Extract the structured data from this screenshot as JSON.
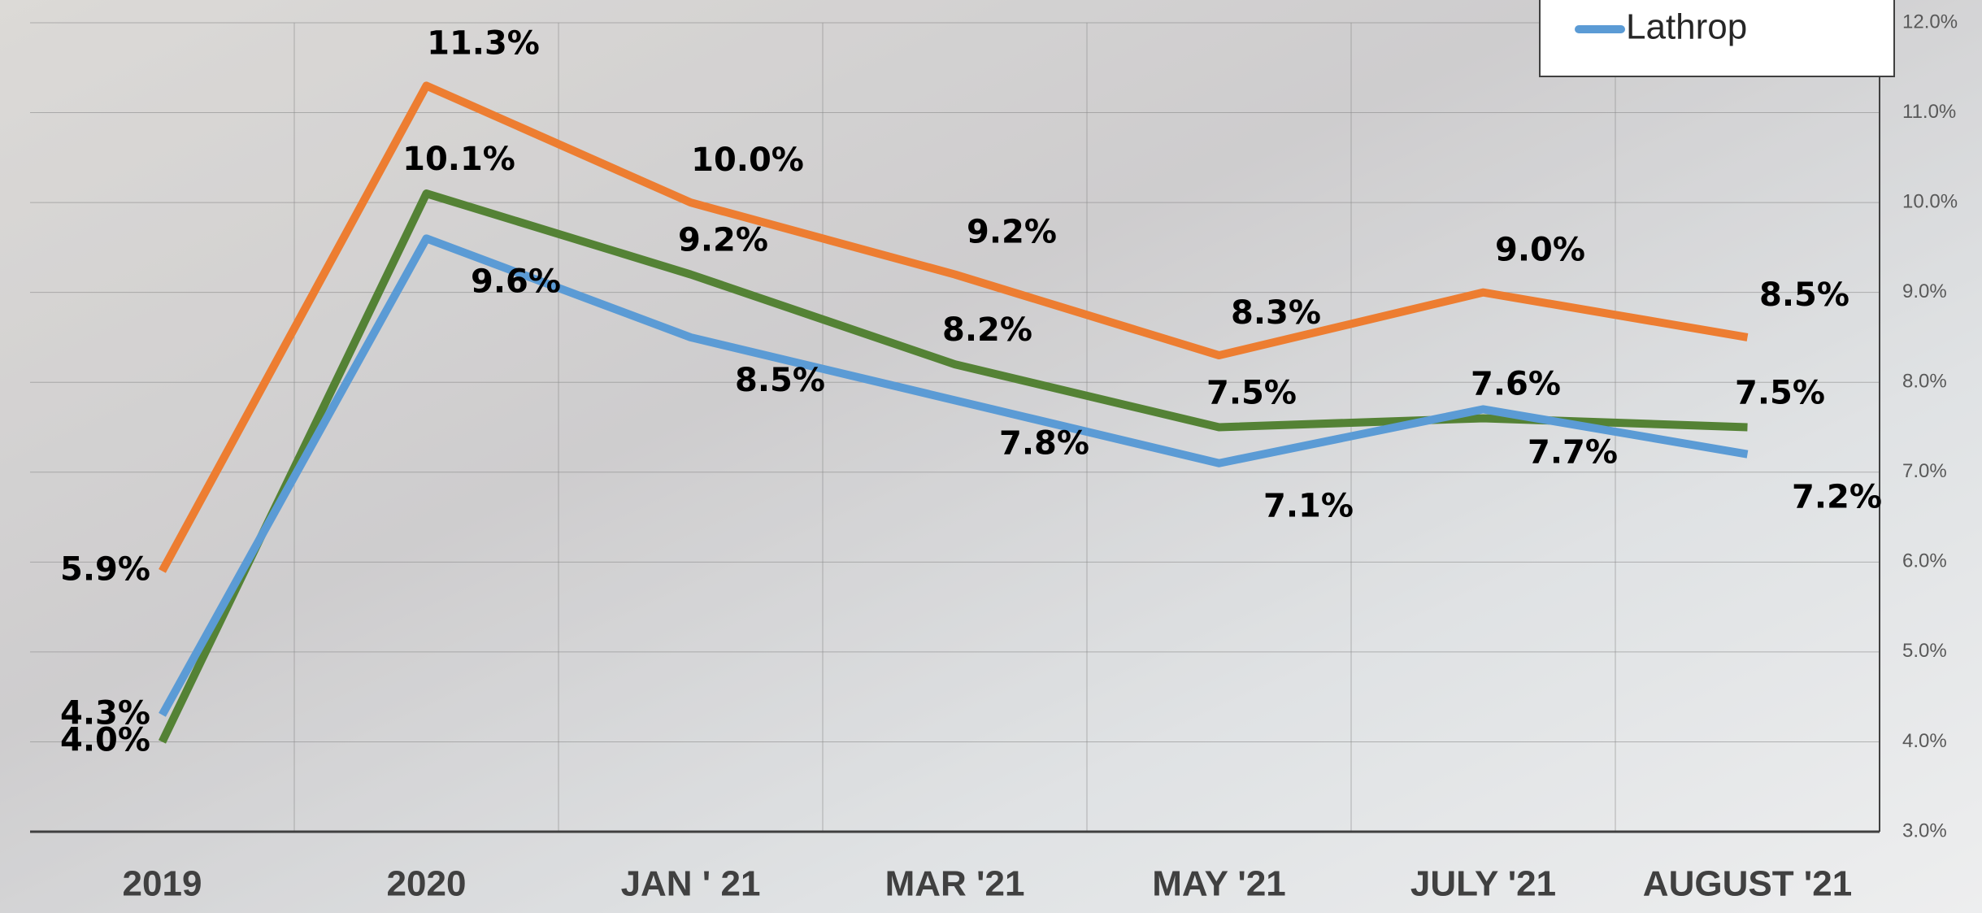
{
  "chart_data": {
    "type": "line",
    "categories": [
      "2019",
      "2020",
      "JAN ' 21",
      "MAR '21",
      "MAY '21",
      "JULY '21",
      "AUGUST '21"
    ],
    "series": [
      {
        "color": "#ed7d31",
        "values": [
          5.9,
          11.3,
          10.0,
          9.2,
          8.3,
          9.0,
          8.5
        ],
        "value_labels": [
          "5.9%",
          "11.3%",
          "10.0%",
          "9.2%",
          "8.3%",
          "9.0%",
          "8.5%"
        ]
      },
      {
        "color": "#548235",
        "values": [
          4.0,
          10.1,
          9.2,
          8.2,
          7.5,
          7.6,
          7.5
        ],
        "value_labels": [
          "4.0%",
          "10.1%",
          "9.2%",
          "8.2%",
          "7.5%",
          "7.6%",
          "7.5%"
        ]
      },
      {
        "name": "Lathrop",
        "color": "#5b9bd5",
        "values": [
          4.3,
          9.6,
          8.5,
          7.8,
          7.1,
          7.7,
          7.2
        ],
        "value_labels": [
          "4.3%",
          "9.6%",
          "8.5%",
          "7.8%",
          "7.1%",
          "7.7%",
          "7.2%"
        ]
      }
    ],
    "ylim": [
      3.0,
      12.0
    ],
    "yticks": [
      {
        "value": 3.0,
        "label": "3.0%"
      },
      {
        "value": 4.0,
        "label": "4.0%"
      },
      {
        "value": 5.0,
        "label": "5.0%"
      },
      {
        "value": 6.0,
        "label": "6.0%"
      },
      {
        "value": 7.0,
        "label": "7.0%"
      },
      {
        "value": 8.0,
        "label": "8.0%"
      },
      {
        "value": 9.0,
        "label": "9.0%"
      },
      {
        "value": 10.0,
        "label": "10.0%"
      },
      {
        "value": 11.0,
        "label": "11.0%"
      },
      {
        "value": 12.0,
        "label": "12.0%"
      }
    ],
    "grid": true,
    "legend": "top-right"
  }
}
